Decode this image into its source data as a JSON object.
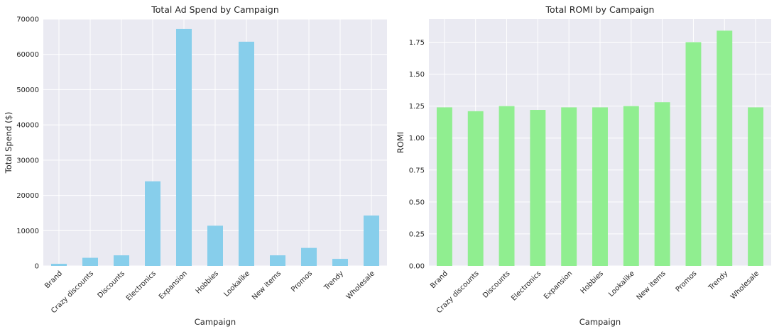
{
  "chart_data": [
    {
      "type": "bar",
      "title": "Total Ad Spend by Campaign",
      "xlabel": "Campaign",
      "ylabel": "Total Spend ($)",
      "categories": [
        "Brand",
        "Crazy discounts",
        "Discounts",
        "Electronics",
        "Expansion",
        "Hobbies",
        "Lookalike",
        "New items",
        "Promos",
        "Trendy",
        "Wholesale"
      ],
      "values": [
        600,
        2300,
        3000,
        24000,
        67200,
        11400,
        63600,
        3000,
        5100,
        2000,
        14300
      ],
      "ylim": [
        0,
        70000
      ],
      "yticks": [
        0,
        10000,
        20000,
        30000,
        40000,
        50000,
        60000,
        70000
      ],
      "ytick_labels": [
        "0",
        "10000",
        "20000",
        "30000",
        "40000",
        "50000",
        "60000",
        "70000"
      ],
      "bar_color": "#87ceeb",
      "grid": true
    },
    {
      "type": "bar",
      "title": "Total ROMI by Campaign",
      "xlabel": "Campaign",
      "ylabel": "ROMI",
      "categories": [
        "Brand",
        "Crazy discounts",
        "Discounts",
        "Electronics",
        "Expansion",
        "Hobbies",
        "Lookalike",
        "New items",
        "Promos",
        "Trendy",
        "Wholesale"
      ],
      "values": [
        1.24,
        1.21,
        1.25,
        1.22,
        1.24,
        1.24,
        1.25,
        1.28,
        1.75,
        1.84,
        1.24
      ],
      "ylim": [
        0,
        1.93
      ],
      "yticks": [
        0,
        0.25,
        0.5,
        0.75,
        1.0,
        1.25,
        1.5,
        1.75
      ],
      "ytick_labels": [
        "0.00",
        "0.25",
        "0.50",
        "0.75",
        "1.00",
        "1.25",
        "1.50",
        "1.75"
      ],
      "bar_color": "#90ee90",
      "grid": true
    }
  ],
  "style": {
    "plot_background": "#eaeaf2",
    "grid_color": "#ffffff"
  }
}
